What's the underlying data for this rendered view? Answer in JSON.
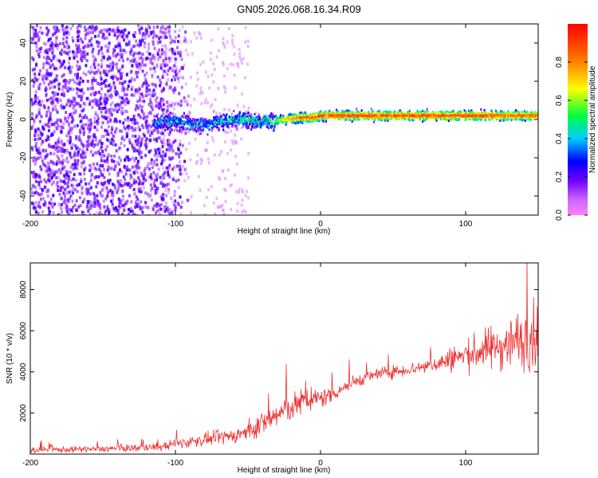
{
  "figure": {
    "title": "GN05.2026.068.16.34.R09"
  },
  "chart_data": [
    {
      "type": "heatmap",
      "xlabel": "Height of straight line (km)",
      "ylabel": "Frequency (Hz)",
      "xlim": [
        -200,
        150
      ],
      "ylim": [
        -50,
        50
      ],
      "xticks": [
        -200,
        -100,
        0,
        100
      ],
      "yticks": [
        -40,
        -20,
        0,
        20,
        40
      ],
      "colorbar": {
        "label": "Normalized spectral amplitude",
        "range": [
          0.0,
          1.0
        ],
        "ticks": [
          0.0,
          0.2,
          0.4,
          0.6,
          0.8
        ],
        "colormap": [
          "#ff00ff",
          "#7f00ff",
          "#0000ff",
          "#00ffff",
          "#00ff00",
          "#ffff00",
          "#ff7f00",
          "#ff0000"
        ]
      },
      "ridge": {
        "x": [
          -115,
          -100,
          -85,
          -70,
          -55,
          -45,
          -35,
          -25,
          -15,
          -5,
          0,
          10,
          50,
          100,
          150
        ],
        "y": [
          -2,
          -1,
          -3,
          -1,
          0,
          -1,
          -1,
          0,
          1,
          1,
          2,
          2,
          2,
          2,
          2
        ],
        "amplitude": [
          0.35,
          0.4,
          0.35,
          0.4,
          0.45,
          0.45,
          0.5,
          0.75,
          0.9,
          0.95,
          0.95,
          0.95,
          0.95,
          0.95,
          0.9
        ]
      },
      "noise_region": {
        "x": [
          -200,
          -110
        ],
        "y": [
          -50,
          50
        ],
        "amplitude": [
          0.1,
          0.25
        ]
      },
      "grid": false
    },
    {
      "type": "line",
      "xlabel": "Height of straight line (km)",
      "ylabel": "SNR (10 * v/v)",
      "xlim": [
        -200,
        150
      ],
      "ylim": [
        0,
        9300
      ],
      "xticks": [
        -200,
        -100,
        0,
        100
      ],
      "yticks": [
        2000,
        4000,
        6000,
        8000
      ],
      "series": [
        {
          "color": "#ee3030",
          "x": [
            -200,
            -150,
            -110,
            -100,
            -80,
            -60,
            -50,
            -40,
            -30,
            -20,
            -10,
            0,
            10,
            20,
            30,
            40,
            50,
            60,
            70,
            80,
            90,
            100,
            110,
            120,
            130,
            140,
            150
          ],
          "y": [
            200,
            250,
            350,
            500,
            700,
            900,
            1100,
            1500,
            1900,
            2300,
            2600,
            2700,
            3000,
            3400,
            3700,
            3900,
            4000,
            4100,
            4250,
            4400,
            4600,
            4800,
            5000,
            5200,
            5400,
            5600,
            5800
          ],
          "spread": [
            150,
            150,
            200,
            250,
            300,
            350,
            400,
            600,
            700,
            700,
            600,
            500,
            400,
            350,
            300,
            300,
            300,
            300,
            350,
            400,
            600,
            700,
            900,
            1100,
            1300,
            1500,
            1600
          ]
        }
      ],
      "grid": false
    }
  ]
}
